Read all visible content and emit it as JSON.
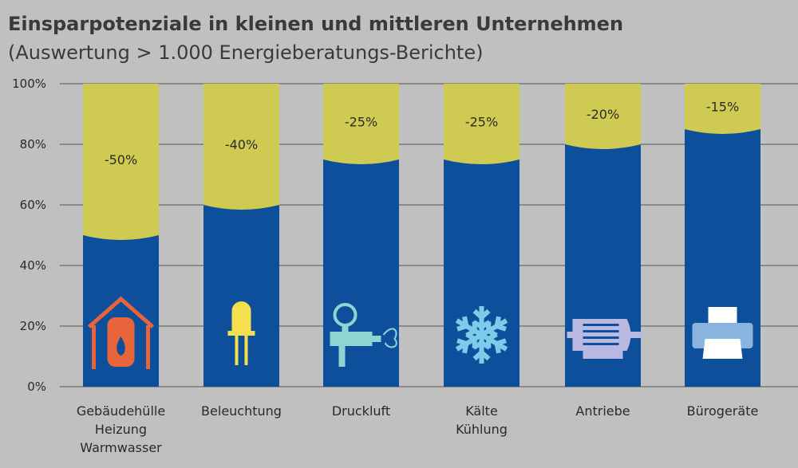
{
  "chart_data": {
    "type": "bar",
    "stacked": true,
    "title": "Einsparpotenziale in kleinen und mittleren Unternehmen",
    "subtitle": "(Auswertung > 1.000 Energieberatungs-Berichte)",
    "categories": [
      [
        "Gebäudehülle",
        "Heizung",
        "Warmwasser"
      ],
      [
        "Beleuchtung"
      ],
      [
        "Druckluft"
      ],
      [
        "Kälte",
        "Kühlung"
      ],
      [
        "Antriebe"
      ],
      [
        "Bürogeräte"
      ]
    ],
    "savings_labels": [
      "-50%",
      "-40%",
      "-25%",
      "-25%",
      "-20%",
      "-15%"
    ],
    "series": [
      {
        "values": [
          50,
          60,
          75,
          75,
          80,
          85
        ],
        "color": "#0e4f9c"
      },
      {
        "values": [
          50,
          40,
          25,
          25,
          20,
          15
        ],
        "color": "#cfcb52"
      }
    ],
    "yticks": [
      "0%",
      "20%",
      "40%",
      "60%",
      "80%",
      "100%"
    ],
    "ylim": [
      0,
      100
    ],
    "grid": true,
    "icons": [
      "house-water-heater-icon",
      "led-bulb-icon",
      "compressed-air-gauge-icon",
      "snowflake-icon",
      "electric-motor-icon",
      "printer-icon"
    ],
    "icon_colors": [
      "#e8643a",
      "#f5df4d",
      "#8fd3d3",
      "#7ccbe8",
      "#b9b8e0",
      "#8ab4e0"
    ]
  }
}
